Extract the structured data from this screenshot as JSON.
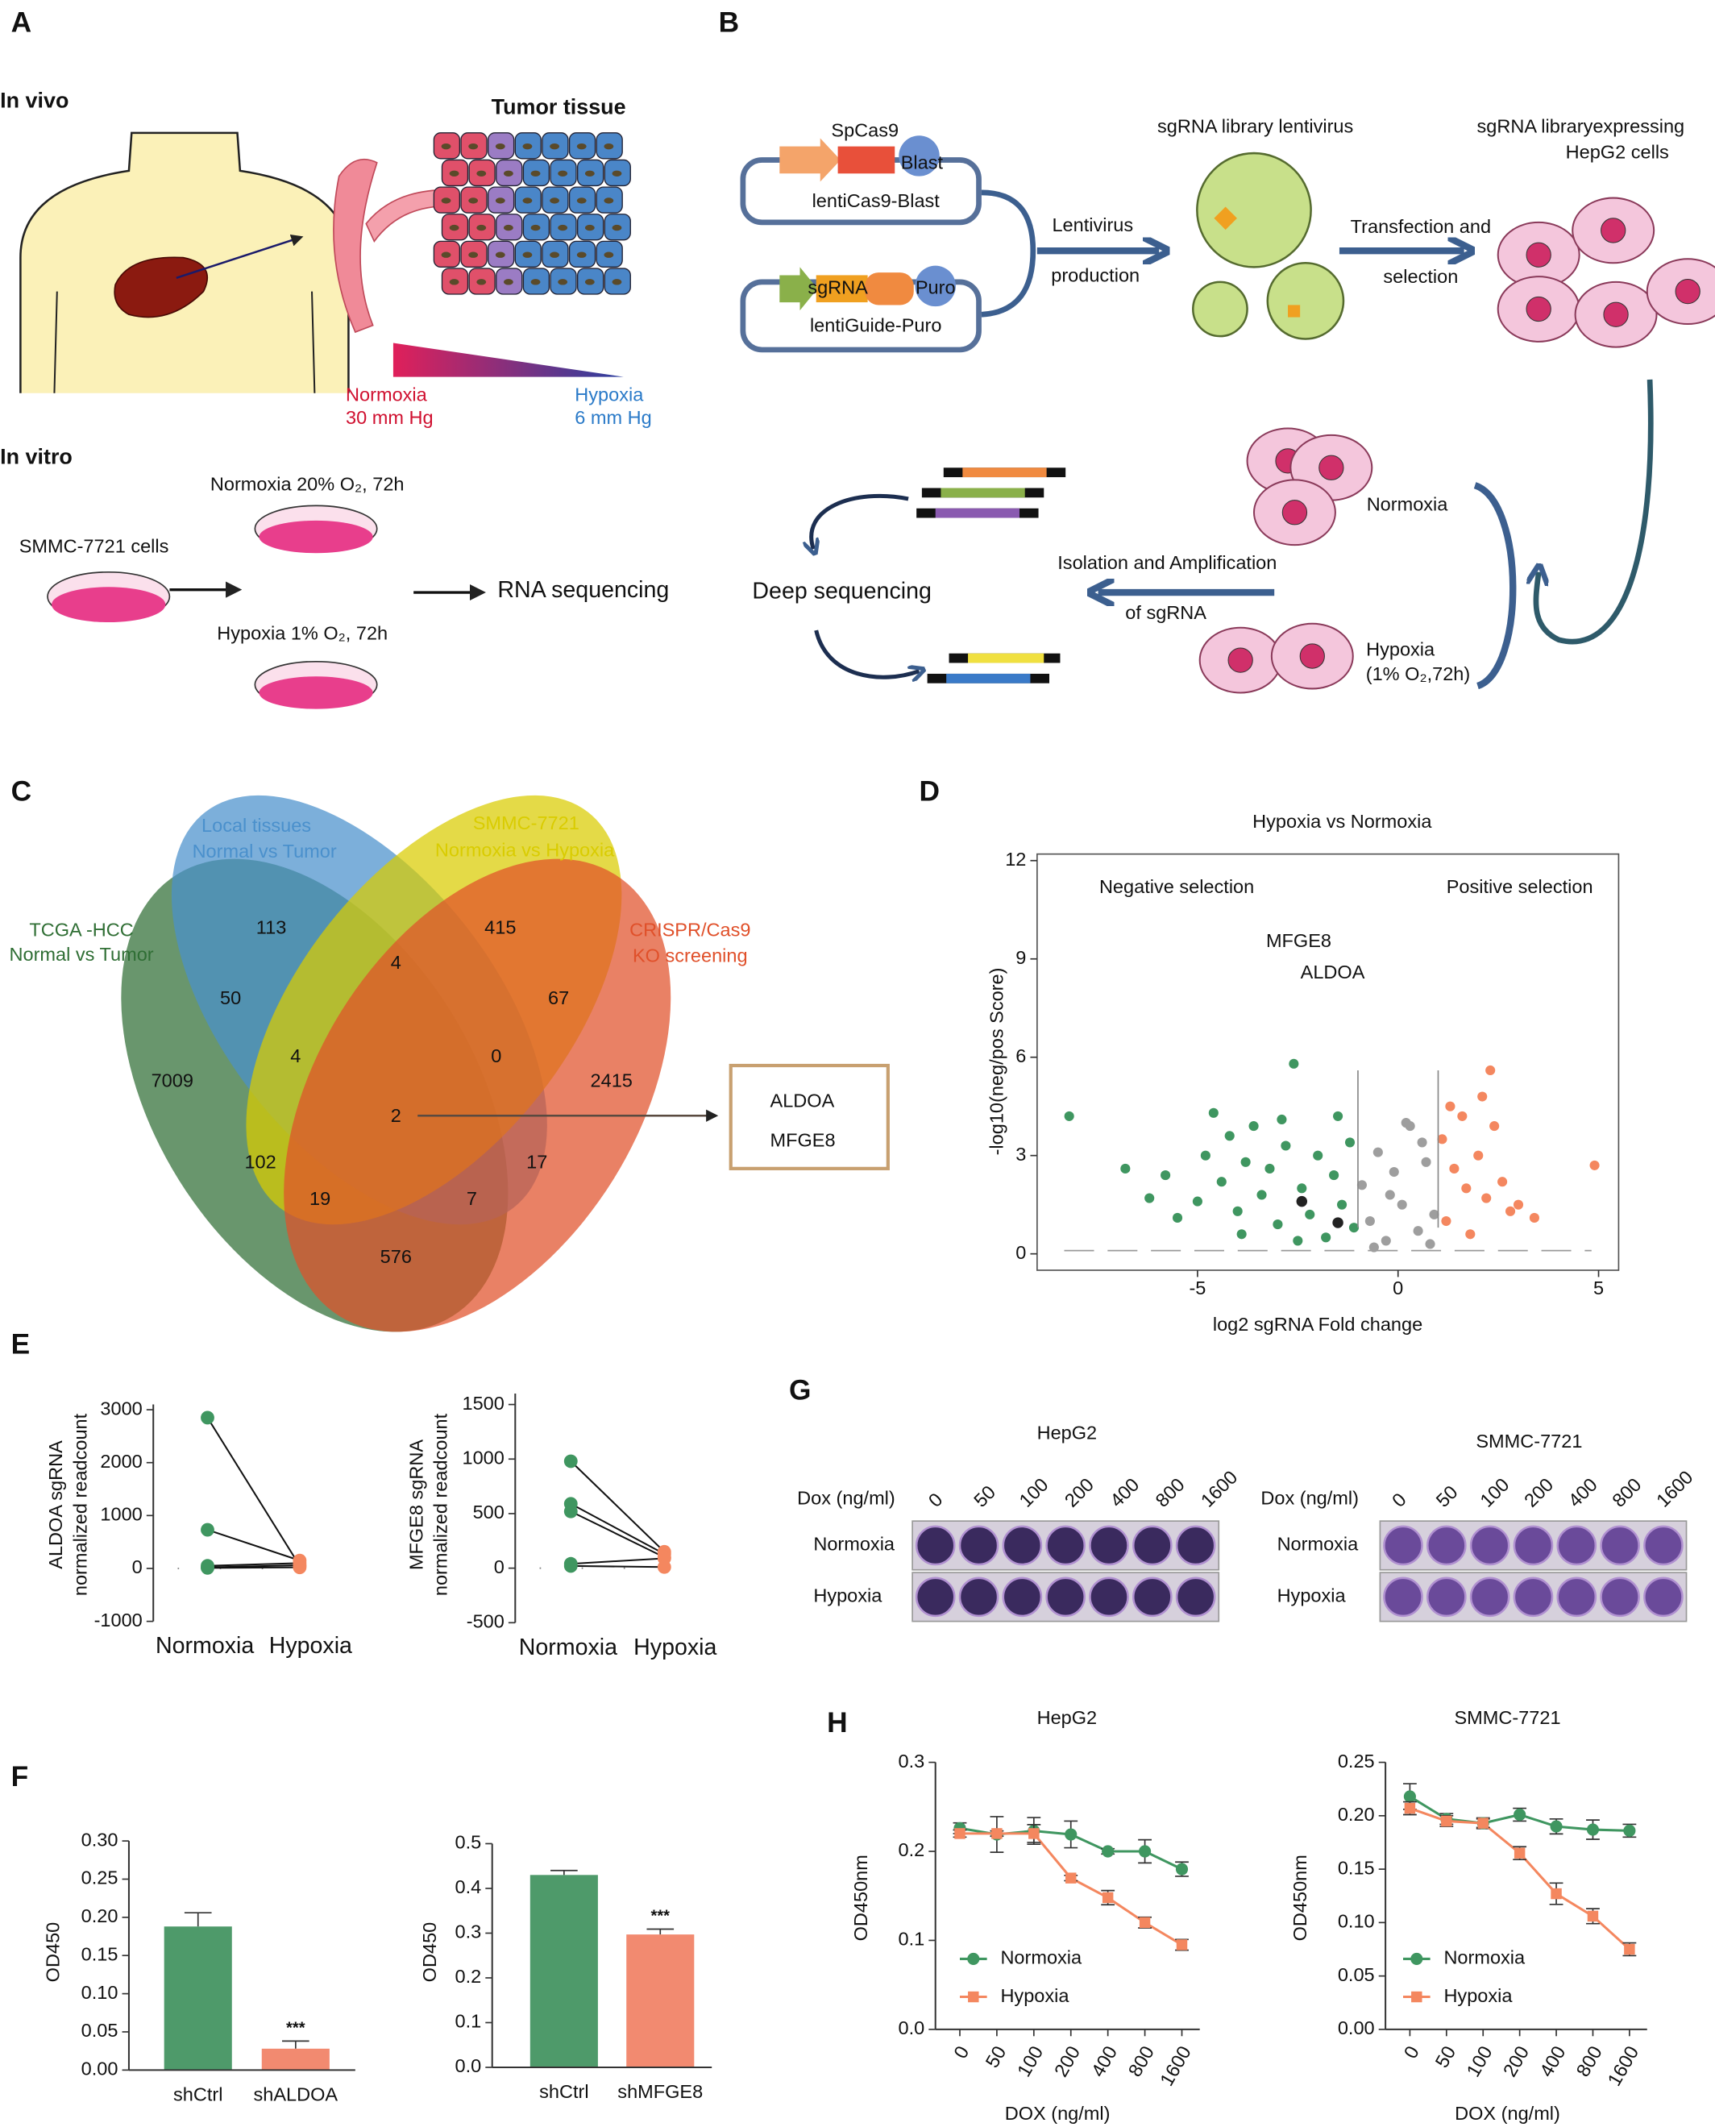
{
  "panel_labels": [
    "A",
    "B",
    "C",
    "D",
    "E",
    "F",
    "G",
    "H"
  ],
  "panel_a": {
    "in_vivo": "In vivo",
    "tumor_tissue": "Tumor tissue",
    "normoxia": "Normoxia",
    "normoxia_pressure": "30 mm Hg",
    "hypoxia": "Hypoxia",
    "hypoxia_pressure": "6 mm Hg",
    "in_vitro": "In vitro",
    "cells": "SMMC-7721 cells",
    "normoxia_condition": "Normoxia 20% O₂, 72h",
    "hypoxia_condition": "Hypoxia 1% O₂, 72h",
    "rna_seq": "RNA sequencing"
  },
  "panel_b": {
    "spcas9": "SpCas9",
    "blast": "Blast",
    "lenticas9": "lentiCas9-Blast",
    "sgrna": "sgRNA",
    "puro": "Puro",
    "lentiguide": "lentiGuide-Puro",
    "lentivirus": "Lentivirus",
    "production": "production",
    "library_virus": "sgRNA library lentivirus",
    "transfection": "Transfection and",
    "selection": "selection",
    "expressing": "sgRNA libraryexpressing",
    "hepg2": "HepG2 cells",
    "normoxia": "Normoxia",
    "isolation": "Isolation and Amplification",
    "of_sgrna": "of sgRNA",
    "deep_seq": "Deep sequencing",
    "hypoxia": "Hypoxia",
    "hypoxia_condition": "(1% O₂,72h)"
  },
  "venn": {
    "sets": [
      [
        "TCGA -HCC",
        "Normal vs Tumor"
      ],
      [
        "Local tissues",
        "Normal vs Tumor"
      ],
      [
        "SMMC-7721",
        "Normoxia vs Hypoxia"
      ],
      [
        "CRISPR/Cas9",
        "KO screening"
      ]
    ],
    "colors": [
      "#2f6e34",
      "#4a90cc",
      "#d9cc00",
      "#e0502a"
    ],
    "counts": [
      113,
      415,
      4,
      50,
      67,
      4,
      0,
      7009,
      2415,
      2,
      102,
      17,
      19,
      7,
      576
    ],
    "result": [
      "ALDOA",
      "MFGE8"
    ]
  },
  "panel_g": {
    "left": {
      "title": "HepG2",
      "dox": "Dox (ng/ml)",
      "doses": [
        "0",
        "50",
        "100",
        "200",
        "400",
        "800",
        "1600"
      ],
      "rows": [
        "Normoxia",
        "Hypoxia"
      ]
    },
    "right": {
      "title": "SMMC-7721",
      "dox": "Dox (ng/ml)",
      "doses": [
        "0",
        "50",
        "100",
        "200",
        "400",
        "800",
        "1600"
      ],
      "rows": [
        "Normoxia",
        "Hypoxia"
      ]
    }
  },
  "chart_data": [
    {
      "type": "scatter",
      "title": "Hypoxia vs Normoxia",
      "xlabel": "log2 sgRNA Fold change",
      "ylabel": "-log10(neg/pos  Score)",
      "xlim": [
        -9,
        5.5
      ],
      "ylim": [
        -0.5,
        12.2
      ],
      "xticks": [
        -5,
        0,
        5
      ],
      "yticks": [
        0,
        3,
        6,
        9,
        12
      ],
      "thresholds_x": [
        -1,
        1
      ],
      "threshold_y": 0.1,
      "annotations": [
        "Negative selection",
        "Positive selection",
        "MFGE8",
        "ALDOA"
      ],
      "series": [
        {
          "color": "#3f9660",
          "x": [
            -8.2,
            -6.8,
            -6.2,
            -5.8,
            -5.5,
            -5.0,
            -4.8,
            -4.6,
            -4.4,
            -4.2,
            -4.0,
            -3.8,
            -3.6,
            -3.4,
            -3.2,
            -3.0,
            -2.8,
            -2.6,
            -2.4,
            -2.2,
            -2.0,
            -1.8,
            -1.6,
            -1.4,
            -1.2,
            -1.1,
            -2.9,
            -3.9,
            -1.5,
            -2.5
          ],
          "values": [
            4.2,
            2.6,
            1.7,
            2.4,
            1.1,
            1.6,
            3.0,
            4.3,
            2.2,
            3.6,
            1.3,
            2.8,
            3.9,
            1.8,
            2.6,
            0.9,
            3.3,
            5.8,
            2.0,
            1.2,
            3.0,
            0.5,
            2.4,
            1.5,
            3.4,
            0.8,
            4.1,
            0.6,
            4.2,
            0.4
          ]
        },
        {
          "color": "#9e9e9e",
          "x": [
            -0.9,
            -0.7,
            -0.5,
            -0.3,
            -0.1,
            0.1,
            0.3,
            0.5,
            0.7,
            0.9,
            -0.6,
            0.2,
            -0.2,
            0.6,
            0.8
          ],
          "values": [
            2.1,
            1.0,
            3.1,
            0.4,
            2.5,
            1.5,
            3.9,
            0.7,
            2.8,
            1.2,
            0.2,
            4.0,
            1.8,
            3.4,
            0.3
          ]
        },
        {
          "color": "#f4875f",
          "x": [
            1.1,
            1.2,
            1.4,
            1.6,
            1.8,
            2.0,
            2.2,
            2.3,
            2.4,
            2.6,
            2.8,
            3.0,
            3.4,
            4.9,
            1.3,
            2.1,
            1.7
          ],
          "values": [
            3.5,
            1.0,
            2.6,
            4.2,
            0.6,
            3.0,
            1.7,
            5.6,
            3.9,
            2.2,
            1.3,
            1.5,
            1.1,
            2.7,
            4.5,
            4.8,
            2.0
          ]
        },
        {
          "color": "#222222",
          "x": [
            -2.4,
            -1.5
          ],
          "values": [
            1.6,
            0.95
          ]
        }
      ]
    },
    {
      "type": "paired",
      "ylabel": [
        "ALDOA sgRNA",
        "normalized readcount"
      ],
      "categories": [
        "Normoxia",
        "Hypoxia"
      ],
      "colors": [
        "#3f9660",
        "#f4875f"
      ],
      "ylim": [
        -1000,
        3100
      ],
      "yticks": [
        -1000,
        0,
        1000,
        2000,
        3000
      ],
      "series": [
        {
          "values": [
            2850,
            50
          ]
        },
        {
          "values": [
            730,
            150
          ]
        },
        {
          "values": [
            50,
            100
          ]
        },
        {
          "values": [
            20,
            60
          ]
        },
        {
          "values": [
            10,
            20
          ]
        }
      ]
    },
    {
      "type": "paired",
      "ylabel": [
        "MFGE8 sgRNA",
        "normalized readcount"
      ],
      "categories": [
        "Normoxia",
        "Hypoxia"
      ],
      "colors": [
        "#3f9660",
        "#f4875f"
      ],
      "ylim": [
        -500,
        1600
      ],
      "yticks": [
        -500,
        0,
        500,
        1000,
        1500
      ],
      "series": [
        {
          "values": [
            980,
            150
          ]
        },
        {
          "values": [
            590,
            130
          ]
        },
        {
          "values": [
            520,
            100
          ]
        },
        {
          "values": [
            40,
            90
          ]
        },
        {
          "values": [
            20,
            10
          ]
        }
      ]
    },
    {
      "type": "bar",
      "ylabel": "OD450",
      "categories": [
        "shCtrl",
        "shALDOA"
      ],
      "values": [
        0.188,
        0.028
      ],
      "errors": [
        0.018,
        0.01
      ],
      "colors": [
        "#4e9a6a",
        "#f28a70"
      ],
      "significance": [
        null,
        "***"
      ],
      "ylim": [
        0,
        0.3
      ],
      "yticks": [
        {
          "value": 0,
          "label": "0.00"
        },
        0.05,
        {
          "value": 0.1,
          "label": "0.10"
        },
        0.15,
        {
          "value": 0.2,
          "label": "0.20"
        },
        0.25,
        {
          "value": 0.3,
          "label": "0.30"
        }
      ]
    },
    {
      "type": "bar",
      "ylabel": "OD450",
      "categories": [
        "shCtrl",
        "shMFGE8"
      ],
      "values": [
        0.43,
        0.297
      ],
      "errors": [
        0.01,
        0.012
      ],
      "colors": [
        "#4e9a6a",
        "#f28a70"
      ],
      "significance": [
        null,
        "***"
      ],
      "ylim": [
        0,
        0.5
      ],
      "yticks": [
        {
          "value": 0,
          "label": "0.0"
        },
        0.1,
        0.2,
        0.3,
        0.4,
        0.5
      ]
    },
    {
      "type": "line",
      "title": "HepG2",
      "xlabel": "DOX  (ng/ml)",
      "ylabel": "OD450nm",
      "categories": [
        "0",
        "50",
        "100",
        "200",
        "400",
        "800",
        "1600"
      ],
      "ylim": [
        0,
        0.3
      ],
      "yticks": [
        {
          "value": 0,
          "label": "0.0"
        },
        0.1,
        0.2,
        0.3
      ],
      "series": [
        {
          "name": "Normoxia",
          "color": "#3f9660",
          "marker": "circle",
          "values": [
            0.226,
            0.219,
            0.223,
            0.219,
            0.2,
            0.2,
            0.18
          ],
          "errors": [
            0.006,
            0.02,
            0.015,
            0.015,
            0.003,
            0.013,
            0.008
          ]
        },
        {
          "name": "Hypoxia",
          "color": "#f4875f",
          "marker": "square",
          "values": [
            0.22,
            0.22,
            0.22,
            0.17,
            0.148,
            0.12,
            0.095
          ],
          "errors": [
            0.004,
            0.003,
            0.01,
            0.003,
            0.008,
            0.006,
            0.006
          ]
        }
      ]
    },
    {
      "type": "line",
      "title": "SMMC-7721",
      "xlabel": "DOX  (ng/ml)",
      "ylabel": "OD450nm",
      "categories": [
        "0",
        "50",
        "100",
        "200",
        "400",
        "800",
        "1600"
      ],
      "ylim": [
        0,
        0.25
      ],
      "yticks": [
        {
          "value": 0,
          "label": "0.00"
        },
        0.05,
        {
          "value": 0.1,
          "label": "0.10"
        },
        0.15,
        {
          "value": 0.2,
          "label": "0.20"
        },
        0.25
      ],
      "series": [
        {
          "name": "Normoxia",
          "color": "#3f9660",
          "marker": "circle",
          "values": [
            0.218,
            0.197,
            0.193,
            0.201,
            0.19,
            0.187,
            0.186
          ],
          "errors": [
            0.012,
            0.005,
            0.005,
            0.006,
            0.007,
            0.009,
            0.006
          ]
        },
        {
          "name": "Hypoxia",
          "color": "#f4875f",
          "marker": "square",
          "values": [
            0.207,
            0.195,
            0.193,
            0.165,
            0.127,
            0.106,
            0.075
          ],
          "errors": [
            0.006,
            0.005,
            0.004,
            0.006,
            0.01,
            0.007,
            0.006
          ]
        }
      ]
    }
  ]
}
